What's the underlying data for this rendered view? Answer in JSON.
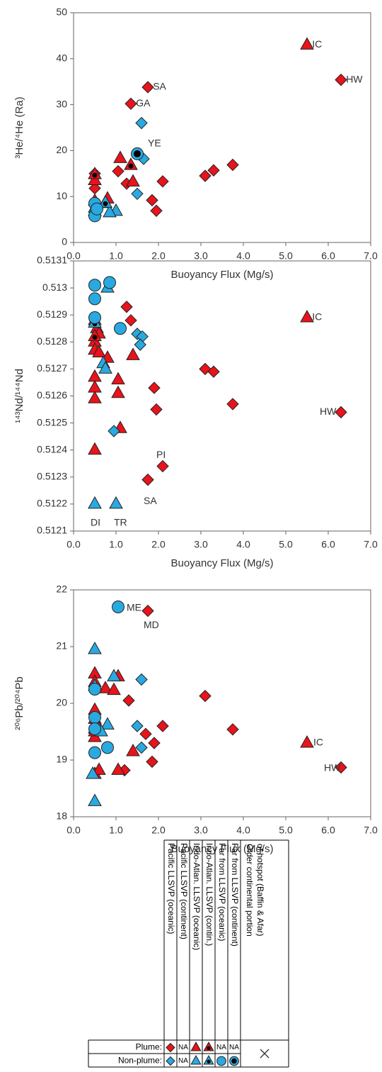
{
  "chart_data": [
    {
      "type": "scatter",
      "xlabel": "Buoyancy Flux (Mg/s)",
      "ylabel": "³He/⁴He (Ra)",
      "xlim": [
        0,
        7
      ],
      "ylim": [
        0,
        50
      ],
      "xticks": [
        {
          "value": 0,
          "label": "0.0"
        },
        {
          "value": 1,
          "label": "1.0"
        },
        {
          "value": 2,
          "label": "2.0"
        },
        {
          "value": 3,
          "label": "3.0"
        },
        {
          "value": 4,
          "label": "4.0"
        },
        {
          "value": 5,
          "label": "5.0"
        },
        {
          "value": 6,
          "label": "6.0"
        },
        {
          "value": 7,
          "label": "7.0"
        }
      ],
      "yticks": [
        0,
        10,
        20,
        30,
        40,
        50
      ],
      "series": [
        {
          "color": "#e8131b",
          "marker": "diamond",
          "dot": false,
          "x": [
            6.3,
            1.75,
            1.35,
            3.1,
            3.3,
            3.75,
            2.1,
            1.85,
            1.95,
            1.25,
            0.5,
            0.5,
            1.05
          ],
          "values": [
            35.4,
            33.8,
            30.2,
            14.5,
            15.7,
            16.9,
            13.3,
            9.2,
            6.9,
            12.8,
            15.0,
            11.8,
            15.5
          ]
        },
        {
          "color": "#e8131b",
          "marker": "triangle",
          "dot": false,
          "x": [
            5.5,
            1.1,
            1.4,
            0.5,
            0.8,
            0.5
          ],
          "values": [
            43,
            18.3,
            13.2,
            13.5,
            9.5,
            9
          ]
        },
        {
          "color": "#e8131b",
          "marker": "triangle",
          "dot": true,
          "x": [
            1.35,
            0.5
          ],
          "values": [
            16.8,
            14.8
          ]
        },
        {
          "color": "#29a9e0",
          "marker": "diamond",
          "dot": false,
          "x": [
            1.6,
            1.65,
            1.5
          ],
          "values": [
            26,
            18.2,
            10.6
          ]
        },
        {
          "color": "#29a9e0",
          "marker": "triangle",
          "dot": false,
          "x": [
            0.75,
            1.0,
            0.5,
            0.85
          ],
          "values": [
            8.5,
            6.8,
            7.5,
            6.5
          ]
        },
        {
          "color": "#29a9e0",
          "marker": "triangle",
          "dot": true,
          "x": [
            0.5,
            0.75
          ],
          "values": [
            6.8,
            8.6
          ]
        },
        {
          "color": "#29a9e0",
          "marker": "circle",
          "dot": false,
          "x": [
            0.5,
            0.5,
            0.55
          ],
          "values": [
            8.5,
            5.8,
            7.3
          ]
        },
        {
          "color": "#29a9e0",
          "marker": "circle",
          "dot": true,
          "x": [
            1.5
          ],
          "values": [
            19.3
          ]
        }
      ],
      "annotations": [
        {
          "text": "IC",
          "x": 5.62,
          "y": 43
        },
        {
          "text": "HW",
          "x": 6.42,
          "y": 35.4
        },
        {
          "text": "SA",
          "x": 1.87,
          "y": 33.8
        },
        {
          "text": "GA",
          "x": 1.47,
          "y": 30.2
        },
        {
          "text": "YE",
          "x": 1.75,
          "y": 21.5
        }
      ]
    },
    {
      "type": "scatter",
      "xlabel": "Buoyancy Flux (Mg/s)",
      "ylabel": "¹⁴³Nd/¹⁴⁴Nd",
      "xlim": [
        0,
        7
      ],
      "ylim": [
        0.5121,
        0.5131
      ],
      "xticks": [
        {
          "value": 0,
          "label": "0.0"
        },
        {
          "value": 1,
          "label": "1.0"
        },
        {
          "value": 2,
          "label": "2.0"
        },
        {
          "value": 3,
          "label": "3.0"
        },
        {
          "value": 4,
          "label": "4.0"
        },
        {
          "value": 5,
          "label": "5.0"
        },
        {
          "value": 6,
          "label": "6.0"
        },
        {
          "value": 7,
          "label": "7.0"
        }
      ],
      "yticks": [
        0.5121,
        0.5122,
        0.5123,
        0.5124,
        0.5125,
        0.5126,
        0.5127,
        0.5128,
        0.5129,
        0.513,
        0.5131
      ],
      "series": [
        {
          "color": "#e8131b",
          "marker": "diamond",
          "dot": false,
          "x": [
            6.3,
            1.25,
            1.35,
            3.1,
            3.3,
            3.75,
            1.9,
            1.95,
            2.1,
            1.75
          ],
          "values": [
            0.51254,
            0.51293,
            0.51288,
            0.5127,
            0.51269,
            0.51257,
            0.51263,
            0.51255,
            0.51234,
            0.51229
          ]
        },
        {
          "color": "#e8131b",
          "marker": "triangle",
          "dot": false,
          "x": [
            5.5,
            0.5,
            0.55,
            0.6,
            0.5,
            0.5,
            0.6,
            0.5,
            0.5,
            0.5,
            1.05,
            1.05,
            1.1,
            0.5,
            1.4,
            0.8
          ],
          "values": [
            0.51289,
            0.51288,
            0.51285,
            0.51283,
            0.5128,
            0.51277,
            0.51276,
            0.51267,
            0.51263,
            0.51259,
            0.51266,
            0.51261,
            0.51248,
            0.5124,
            0.51275,
            0.51274
          ]
        },
        {
          "color": "#e8131b",
          "marker": "triangle",
          "dot": true,
          "x": [
            0.5
          ],
          "values": [
            0.51282
          ]
        },
        {
          "color": "#29a9e0",
          "marker": "diamond",
          "dot": false,
          "x": [
            1.5,
            1.62,
            1.57,
            0.95
          ],
          "values": [
            0.51283,
            0.51282,
            0.51279,
            0.51247
          ]
        },
        {
          "color": "#29a9e0",
          "marker": "triangle",
          "dot": false,
          "x": [
            0.8,
            0.7,
            0.75,
            0.5,
            1.0
          ],
          "values": [
            0.513,
            0.51272,
            0.5127,
            0.5122,
            0.5122
          ]
        },
        {
          "color": "#29a9e0",
          "marker": "triangle",
          "dot": true,
          "x": [
            0.5
          ],
          "values": [
            0.51287
          ]
        },
        {
          "color": "#29a9e0",
          "marker": "circle",
          "dot": false,
          "x": [
            0.5,
            0.5,
            0.85,
            1.1,
            0.5
          ],
          "values": [
            0.51301,
            0.51296,
            0.51302,
            0.51285,
            0.51289
          ]
        }
      ],
      "annotations": [
        {
          "text": "IC",
          "x": 5.62,
          "y": 0.51289
        },
        {
          "text": "HW",
          "x": 5.8,
          "y": 0.51254
        },
        {
          "text": "PI",
          "x": 1.95,
          "y": 0.51238
        },
        {
          "text": "SA",
          "x": 1.65,
          "y": 0.51221
        },
        {
          "text": "DI",
          "x": 0.4,
          "y": 0.51213
        },
        {
          "text": "TR",
          "x": 0.95,
          "y": 0.51213
        }
      ]
    },
    {
      "type": "scatter",
      "xlabel": "Buoyancy Flux (Mg/s)",
      "ylabel": "²⁰⁶Pb/²⁰⁴Pb",
      "xlim": [
        0,
        7
      ],
      "ylim": [
        18,
        22
      ],
      "xticks": [
        {
          "value": 0,
          "label": "0.0"
        },
        {
          "value": 1,
          "label": "1.0"
        },
        {
          "value": 2,
          "label": "2.0"
        },
        {
          "value": 3,
          "label": "3.0"
        },
        {
          "value": 4,
          "label": "4.0"
        },
        {
          "value": 5,
          "label": "5.0"
        },
        {
          "value": 6,
          "label": "6.0"
        },
        {
          "value": 7,
          "label": "7.0"
        }
      ],
      "yticks": [
        18,
        19,
        20,
        21,
        22
      ],
      "series": [
        {
          "color": "#e8131b",
          "marker": "diamond",
          "dot": false,
          "x": [
            6.3,
            1.75,
            1.3,
            3.1,
            3.75,
            2.1,
            1.7,
            1.9,
            1.85,
            1.2
          ],
          "values": [
            18.87,
            21.63,
            20.05,
            20.13,
            19.54,
            19.6,
            19.46,
            19.3,
            18.97,
            18.82
          ]
        },
        {
          "color": "#e8131b",
          "marker": "triangle",
          "dot": false,
          "x": [
            5.5,
            0.5,
            0.5,
            1.05,
            0.75,
            0.95,
            0.5,
            0.5,
            0.55,
            0.5,
            0.5,
            0.5,
            0.6,
            1.05,
            1.4
          ],
          "values": [
            19.3,
            20.52,
            20.37,
            20.47,
            20.26,
            20.23,
            19.88,
            19.72,
            19.62,
            19.55,
            19.4,
            18.75,
            18.82,
            18.82,
            19.15
          ]
        },
        {
          "color": "#e8131b",
          "marker": "triangle",
          "dot": true,
          "x": [
            0.5
          ],
          "values": [
            19.5
          ]
        },
        {
          "color": "#29a9e0",
          "marker": "diamond",
          "dot": false,
          "x": [
            1.6,
            1.5,
            1.6
          ],
          "values": [
            20.42,
            19.6,
            19.22
          ]
        },
        {
          "color": "#29a9e0",
          "marker": "triangle",
          "dot": false,
          "x": [
            0.5,
            0.95,
            0.8,
            0.65,
            0.5,
            0.45
          ],
          "values": [
            20.95,
            20.47,
            19.62,
            19.5,
            18.27,
            18.75
          ]
        },
        {
          "color": "#29a9e0",
          "marker": "triangle",
          "dot": true,
          "x": [
            0.5
          ],
          "values": [
            20.3
          ]
        },
        {
          "color": "#29a9e0",
          "marker": "circle",
          "dot": false,
          "x": [
            1.05,
            0.5,
            0.5,
            0.5,
            0.8,
            0.5
          ],
          "values": [
            21.7,
            19.75,
            19.55,
            19.13,
            19.22,
            20.25
          ]
        }
      ],
      "annotations": [
        {
          "text": "ME",
          "x": 1.25,
          "y": 21.68
        },
        {
          "text": "MD",
          "x": 1.65,
          "y": 21.37
        },
        {
          "text": "IC",
          "x": 5.65,
          "y": 19.3
        },
        {
          "text": "HW",
          "x": 5.9,
          "y": 18.85
        }
      ]
    }
  ],
  "legend_table": {
    "columns": [
      "Pacific LLSVP (oceanic)",
      "Pacific LLSVP (continent)",
      "Indo-Atlan. LLSVP (oceanic)",
      "Indo-Atlan. LLSVP (contin.)",
      "Far from  LLSVP (oceanic)",
      "Far from  LLSVP (continent)",
      [
        "Older continental portion",
        "of hotspot (Baffin & Afar)"
      ]
    ],
    "rows": [
      {
        "label": "Plume:",
        "cells": [
          null,
          "NA",
          null,
          null,
          "NA",
          "NA"
        ]
      },
      {
        "label": "Non-plume:",
        "cells": [
          null,
          "NA",
          null,
          null,
          null,
          null
        ]
      }
    ]
  }
}
